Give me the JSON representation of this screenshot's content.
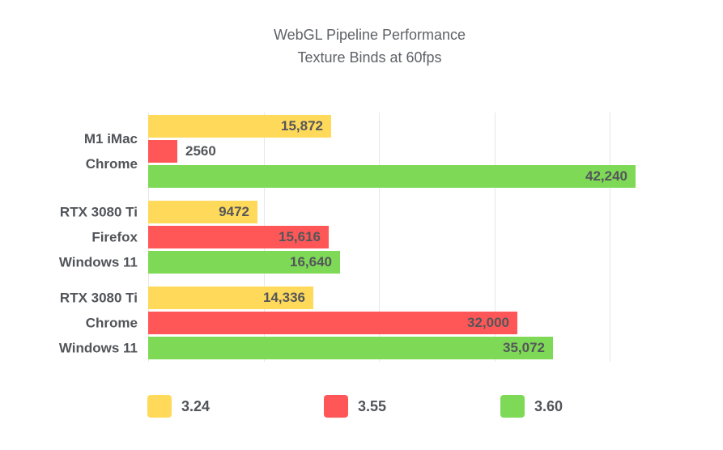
{
  "chart_data": {
    "type": "bar",
    "orientation": "horizontal",
    "title": "WebGL Pipeline Performance",
    "subtitle": "Texture Binds at 60fps",
    "categories": [
      {
        "lines": [
          "M1 iMac",
          "Chrome"
        ]
      },
      {
        "lines": [
          "RTX 3080 Ti",
          "Firefox",
          "Windows 11"
        ]
      },
      {
        "lines": [
          "RTX 3080 Ti",
          "Chrome",
          "Windows 11"
        ]
      }
    ],
    "series": [
      {
        "name": "3.24",
        "color": "#FFD95A",
        "values": [
          15872,
          9472,
          14336
        ],
        "value_labels": [
          "15,872",
          "9472",
          "14,336"
        ]
      },
      {
        "name": "3.55",
        "color": "#FF5757",
        "values": [
          2560,
          15616,
          32000
        ],
        "value_labels": [
          "2560",
          "15,616",
          "32,000"
        ]
      },
      {
        "name": "3.60",
        "color": "#7ED957",
        "values": [
          42240,
          16640,
          35072
        ],
        "value_labels": [
          "42,240",
          "16,640",
          "35,072"
        ]
      }
    ],
    "axis": {
      "xmin": 0,
      "xmax": 46300,
      "gridlines": [
        0,
        10000,
        20000,
        30000,
        40000
      ],
      "tick_labels_visible": false,
      "grid": true
    },
    "legend": {
      "position": "bottom",
      "entries": [
        "3.24",
        "3.55",
        "3.60"
      ]
    },
    "colors": {
      "background": "#FFFFFF",
      "title_text": "#5E6267",
      "label_text": "#515459",
      "value_text": "#54565A",
      "gridline": "#E7E7E7"
    }
  }
}
